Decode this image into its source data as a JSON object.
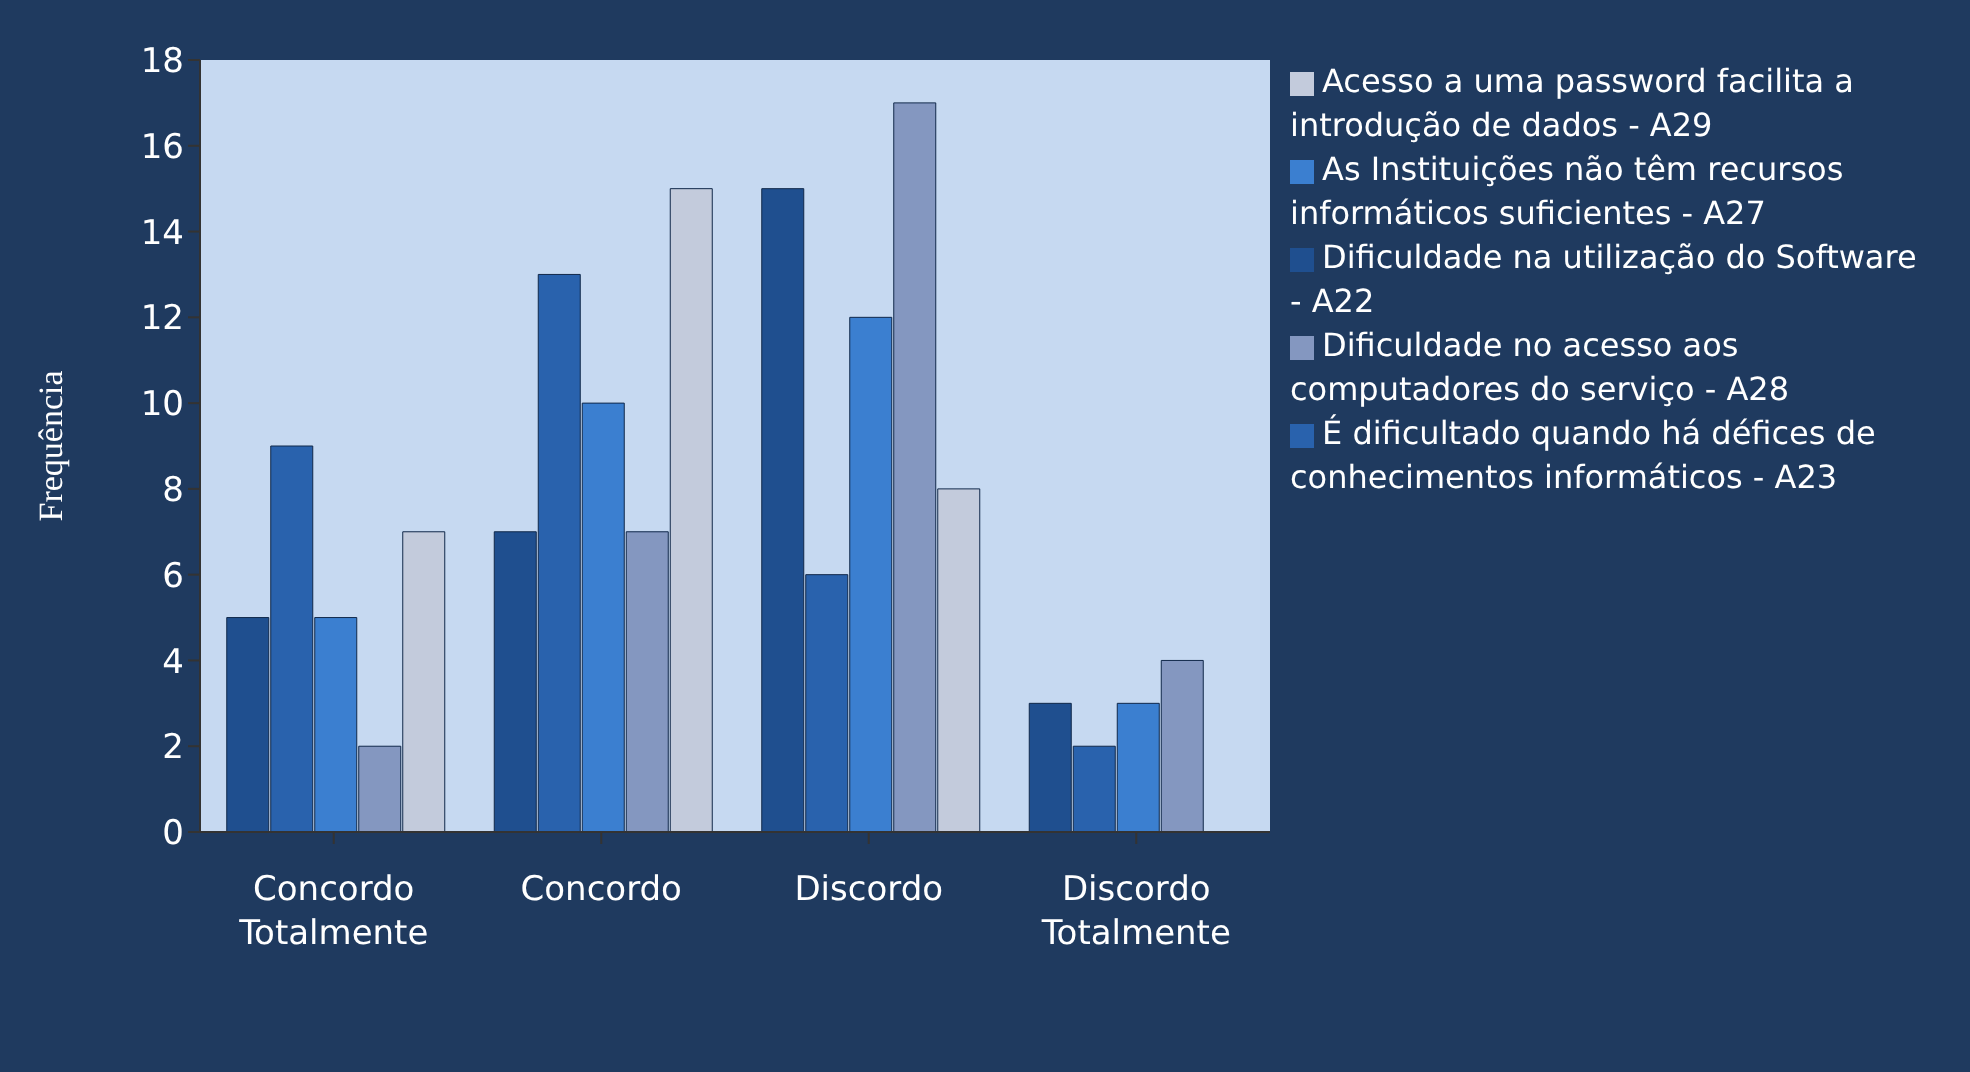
{
  "chart_data": {
    "type": "bar",
    "ylabel": "Frequência",
    "categories": [
      "Concordo Totalmente",
      "Concordo",
      "Discordo",
      "Discordo Totalmente"
    ],
    "series": [
      {
        "name": "Dificuldade na utilização do Software - A22",
        "color": "#1f4f8f",
        "values": [
          5,
          7,
          15,
          3
        ]
      },
      {
        "name": "É dificultado quando há défices de conhecimentos informáticos - A23",
        "color": "#2962ad",
        "values": [
          9,
          13,
          6,
          2
        ]
      },
      {
        "name": "As Instituições não têm recursos informáticos suficientes - A27",
        "color": "#3b7fd0",
        "values": [
          5,
          10,
          12,
          3
        ]
      },
      {
        "name": "Dificuldade no acesso aos computadores do serviço - A28",
        "color": "#8497c0",
        "values": [
          2,
          7,
          17,
          4
        ]
      },
      {
        "name": "Acesso a uma password facilita a introdução de dados - A29",
        "color": "#c3cbdc",
        "values": [
          7,
          15,
          8,
          null
        ]
      }
    ],
    "ylim": [
      0,
      18
    ],
    "yticks": [
      0,
      2,
      4,
      6,
      8,
      10,
      12,
      14,
      16,
      18
    ],
    "legend": "right"
  }
}
